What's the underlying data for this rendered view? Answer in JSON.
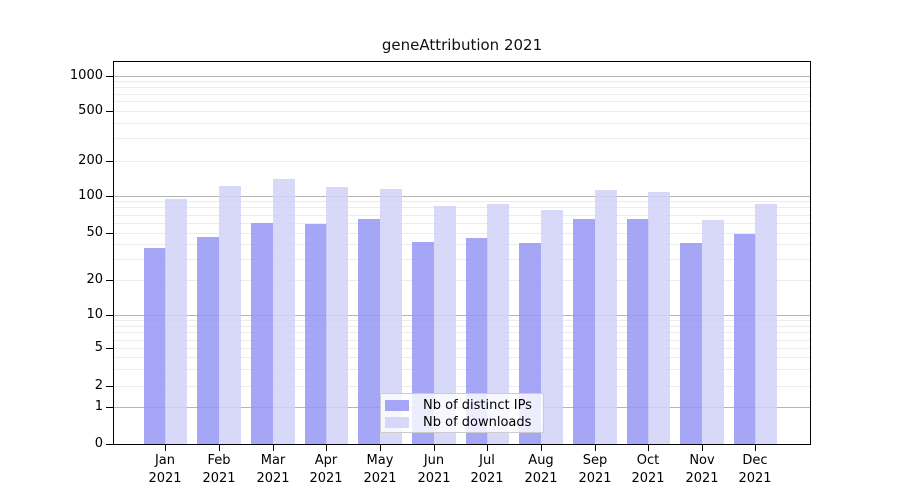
{
  "chart_data": {
    "type": "bar",
    "title": "geneAttribution 2021",
    "scale": "symlog",
    "grid": true,
    "legend_position": "bottom-center",
    "ylim": [
      0,
      1340
    ],
    "y_ticks": [
      0,
      1,
      2,
      5,
      10,
      20,
      50,
      100,
      200,
      500,
      1000
    ],
    "categories": [
      "Jan 2021",
      "Feb 2021",
      "Mar 2021",
      "Apr 2021",
      "May 2021",
      "Jun 2021",
      "Jul 2021",
      "Aug 2021",
      "Sep 2021",
      "Oct 2021",
      "Nov 2021",
      "Dec 2021"
    ],
    "x_tick_labels": [
      [
        "Jan",
        "2021"
      ],
      [
        "Feb",
        "2021"
      ],
      [
        "Mar",
        "2021"
      ],
      [
        "Apr",
        "2021"
      ],
      [
        "May",
        "2021"
      ],
      [
        "Jun",
        "2021"
      ],
      [
        "Jul",
        "2021"
      ],
      [
        "Aug",
        "2021"
      ],
      [
        "Sep",
        "2021"
      ],
      [
        "Oct",
        "2021"
      ],
      [
        "Nov",
        "2021"
      ],
      [
        "Dec",
        "2021"
      ]
    ],
    "series": [
      {
        "name": "Nb of distinct IPs",
        "color": "#9797f6",
        "alpha": 0.85,
        "values": [
          37,
          46,
          60,
          59,
          65,
          42,
          45,
          41,
          65,
          65,
          41,
          49
        ]
      },
      {
        "name": "Nb of downloads",
        "color": "#d1d1f8",
        "alpha": 0.85,
        "values": [
          93,
          121,
          140,
          119,
          113,
          82,
          86,
          77,
          112,
          108,
          63,
          85
        ]
      }
    ],
    "colors": {
      "major_gridline": "#b5b5b5",
      "minor_gridline": "#ececec",
      "axis": "#000000",
      "legend_border": "#cccccc",
      "text": "#000000"
    }
  }
}
